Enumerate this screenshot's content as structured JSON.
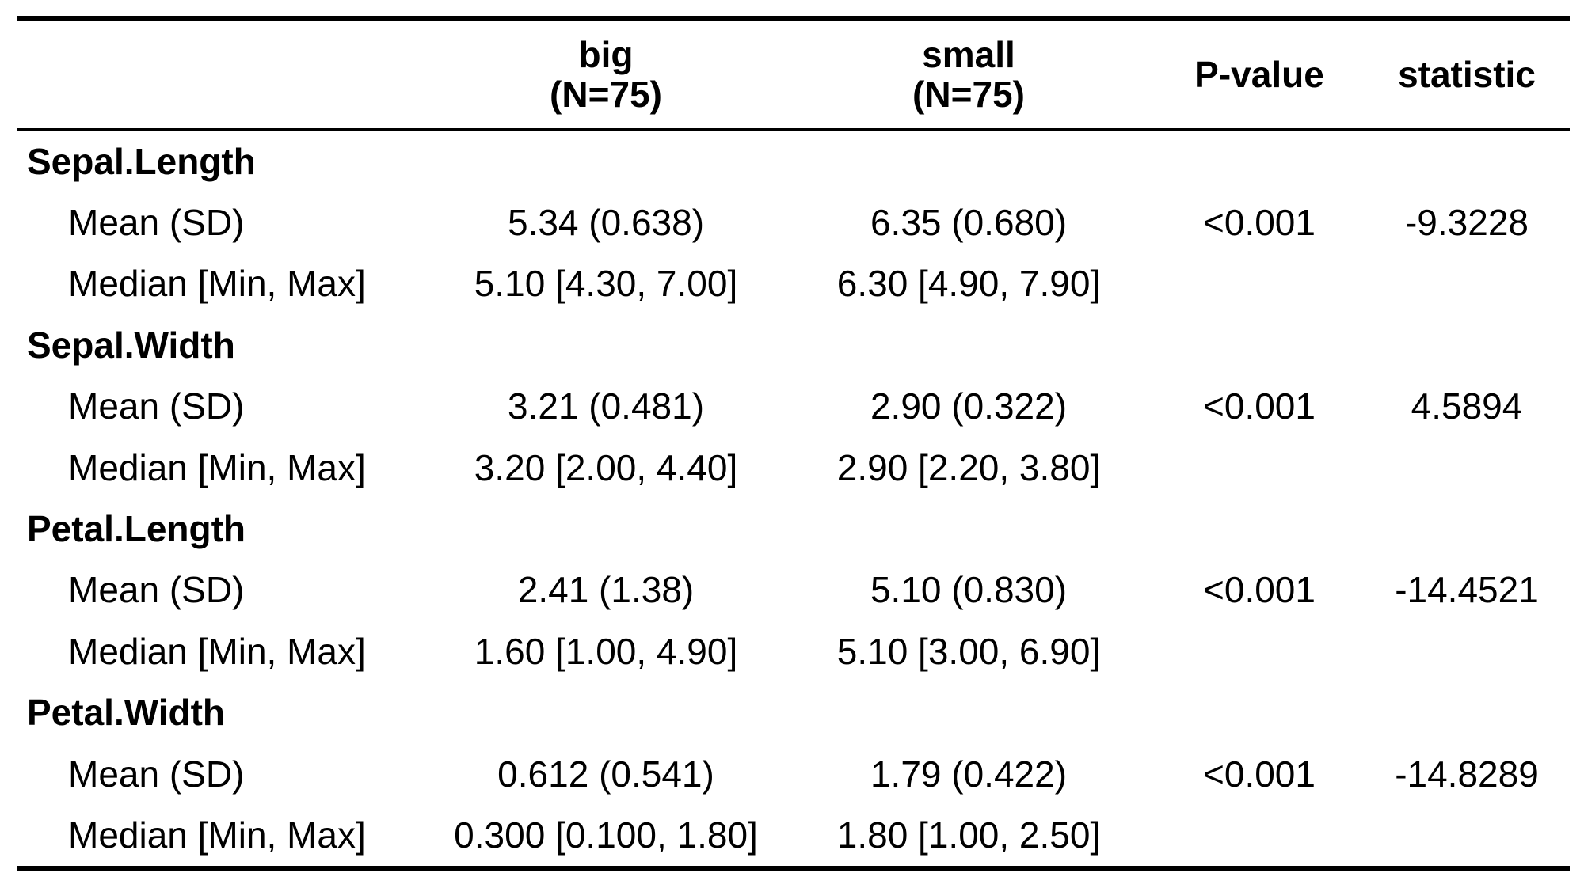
{
  "header": {
    "label": "",
    "big_name": "big",
    "big_n": "(N=75)",
    "small_name": "small",
    "small_n": "(N=75)",
    "pvalue": "P-value",
    "statistic": "statistic"
  },
  "groups": [
    {
      "name": "Sepal.Length",
      "mean_label": "Mean (SD)",
      "mean_big": "5.34 (0.638)",
      "mean_small": "6.35 (0.680)",
      "pvalue": "<0.001",
      "statistic": "-9.3228",
      "median_label": "Median [Min, Max]",
      "median_big": "5.10 [4.30, 7.00]",
      "median_small": "6.30 [4.90, 7.90]"
    },
    {
      "name": "Sepal.Width",
      "mean_label": "Mean (SD)",
      "mean_big": "3.21 (0.481)",
      "mean_small": "2.90 (0.322)",
      "pvalue": "<0.001",
      "statistic": "4.5894",
      "median_label": "Median [Min, Max]",
      "median_big": "3.20 [2.00, 4.40]",
      "median_small": "2.90 [2.20, 3.80]"
    },
    {
      "name": "Petal.Length",
      "mean_label": "Mean (SD)",
      "mean_big": "2.41 (1.38)",
      "mean_small": "5.10 (0.830)",
      "pvalue": "<0.001",
      "statistic": "-14.4521",
      "median_label": "Median [Min, Max]",
      "median_big": "1.60 [1.00, 4.90]",
      "median_small": "5.10 [3.00, 6.90]"
    },
    {
      "name": "Petal.Width",
      "mean_label": "Mean (SD)",
      "mean_big": "0.612 (0.541)",
      "mean_small": "1.79 (0.422)",
      "pvalue": "<0.001",
      "statistic": "-14.8289",
      "median_label": "Median [Min, Max]",
      "median_big": "0.300 [0.100, 1.80]",
      "median_small": "1.80 [1.00, 2.50]"
    }
  ]
}
